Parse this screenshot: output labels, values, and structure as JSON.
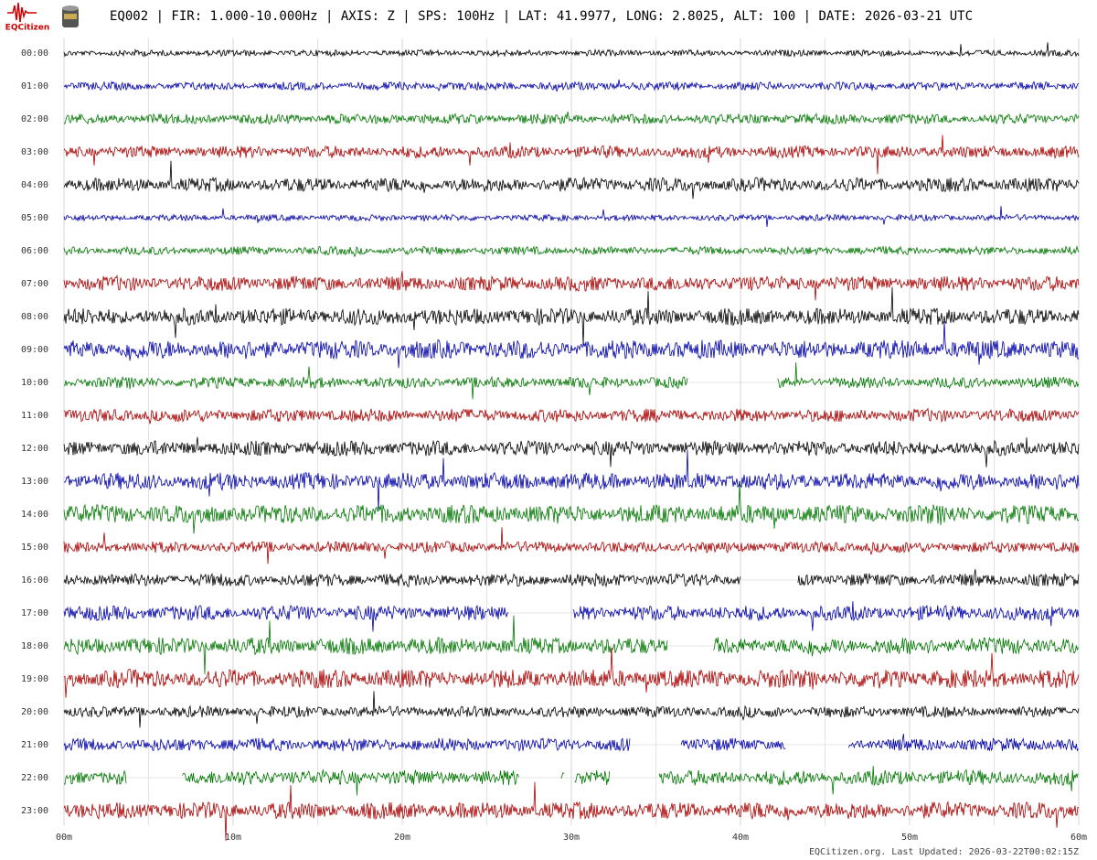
{
  "chart_data": {
    "type": "helicorder",
    "title": "EQ002 | FIR: 1.000-10.000Hz | AXIS: Z | SPS: 100Hz | LAT: 41.9977, LONG: 2.8025, ALT: 100 | DATE: 2026-03-21 UTC",
    "logo_text": "EQCitizen",
    "footer": "EQCitizen.org. Last Updated: 2026-03-22T00:02:15Z",
    "xlim": [
      0,
      60
    ],
    "xticks": [
      {
        "value": 0,
        "label": "00m"
      },
      {
        "value": 10,
        "label": "10m"
      },
      {
        "value": 20,
        "label": "20m"
      },
      {
        "value": 30,
        "label": "30m"
      },
      {
        "value": 40,
        "label": "40m"
      },
      {
        "value": 50,
        "label": "50m"
      },
      {
        "value": 60,
        "label": "60m"
      }
    ],
    "grid": true,
    "rows": [
      {
        "label": "00:00",
        "color": "#000000",
        "segments": [
          [
            0,
            60
          ]
        ]
      },
      {
        "label": "01:00",
        "color": "#0000aa",
        "segments": [
          [
            0,
            60
          ]
        ]
      },
      {
        "label": "02:00",
        "color": "#007700",
        "segments": [
          [
            0,
            60
          ]
        ]
      },
      {
        "label": "03:00",
        "color": "#aa0000",
        "segments": [
          [
            0,
            60
          ]
        ]
      },
      {
        "label": "04:00",
        "color": "#000000",
        "segments": [
          [
            0,
            60
          ]
        ]
      },
      {
        "label": "05:00",
        "color": "#0000aa",
        "segments": [
          [
            0,
            60
          ]
        ]
      },
      {
        "label": "06:00",
        "color": "#007700",
        "segments": [
          [
            0,
            60
          ]
        ]
      },
      {
        "label": "07:00",
        "color": "#aa0000",
        "segments": [
          [
            0,
            60
          ]
        ]
      },
      {
        "label": "08:00",
        "color": "#000000",
        "segments": [
          [
            0,
            60
          ]
        ]
      },
      {
        "label": "09:00",
        "color": "#0000aa",
        "segments": [
          [
            0,
            60
          ]
        ]
      },
      {
        "label": "10:00",
        "color": "#007700",
        "segments": [
          [
            0,
            36.9
          ],
          [
            42.2,
            60
          ]
        ]
      },
      {
        "label": "11:00",
        "color": "#aa0000",
        "segments": [
          [
            0,
            60
          ]
        ]
      },
      {
        "label": "12:00",
        "color": "#000000",
        "segments": [
          [
            0,
            60
          ]
        ]
      },
      {
        "label": "13:00",
        "color": "#0000aa",
        "segments": [
          [
            0,
            60
          ]
        ]
      },
      {
        "label": "14:00",
        "color": "#007700",
        "segments": [
          [
            0,
            60
          ]
        ]
      },
      {
        "label": "15:00",
        "color": "#aa0000",
        "segments": [
          [
            0,
            60
          ]
        ]
      },
      {
        "label": "16:00",
        "color": "#000000",
        "segments": [
          [
            0,
            40
          ],
          [
            43.4,
            60
          ]
        ]
      },
      {
        "label": "17:00",
        "color": "#0000aa",
        "segments": [
          [
            0,
            26.3
          ],
          [
            30.1,
            60
          ]
        ]
      },
      {
        "label": "18:00",
        "color": "#007700",
        "segments": [
          [
            0,
            35.7
          ],
          [
            38.4,
            60
          ]
        ]
      },
      {
        "label": "19:00",
        "color": "#aa0000",
        "segments": [
          [
            0,
            60
          ]
        ]
      },
      {
        "label": "20:00",
        "color": "#000000",
        "segments": [
          [
            0,
            60
          ]
        ]
      },
      {
        "label": "21:00",
        "color": "#0000aa",
        "segments": [
          [
            0,
            33.5
          ],
          [
            36.5,
            42.7
          ],
          [
            46.4,
            60
          ]
        ]
      },
      {
        "label": "22:00",
        "color": "#007700",
        "segments": [
          [
            0,
            3.7
          ],
          [
            7,
            26.9
          ],
          [
            29.4,
            29.6
          ],
          [
            30.2,
            32.3
          ],
          [
            35.2,
            60
          ]
        ]
      },
      {
        "label": "23:00",
        "color": "#aa0000",
        "segments": [
          [
            0,
            60
          ]
        ]
      }
    ]
  }
}
